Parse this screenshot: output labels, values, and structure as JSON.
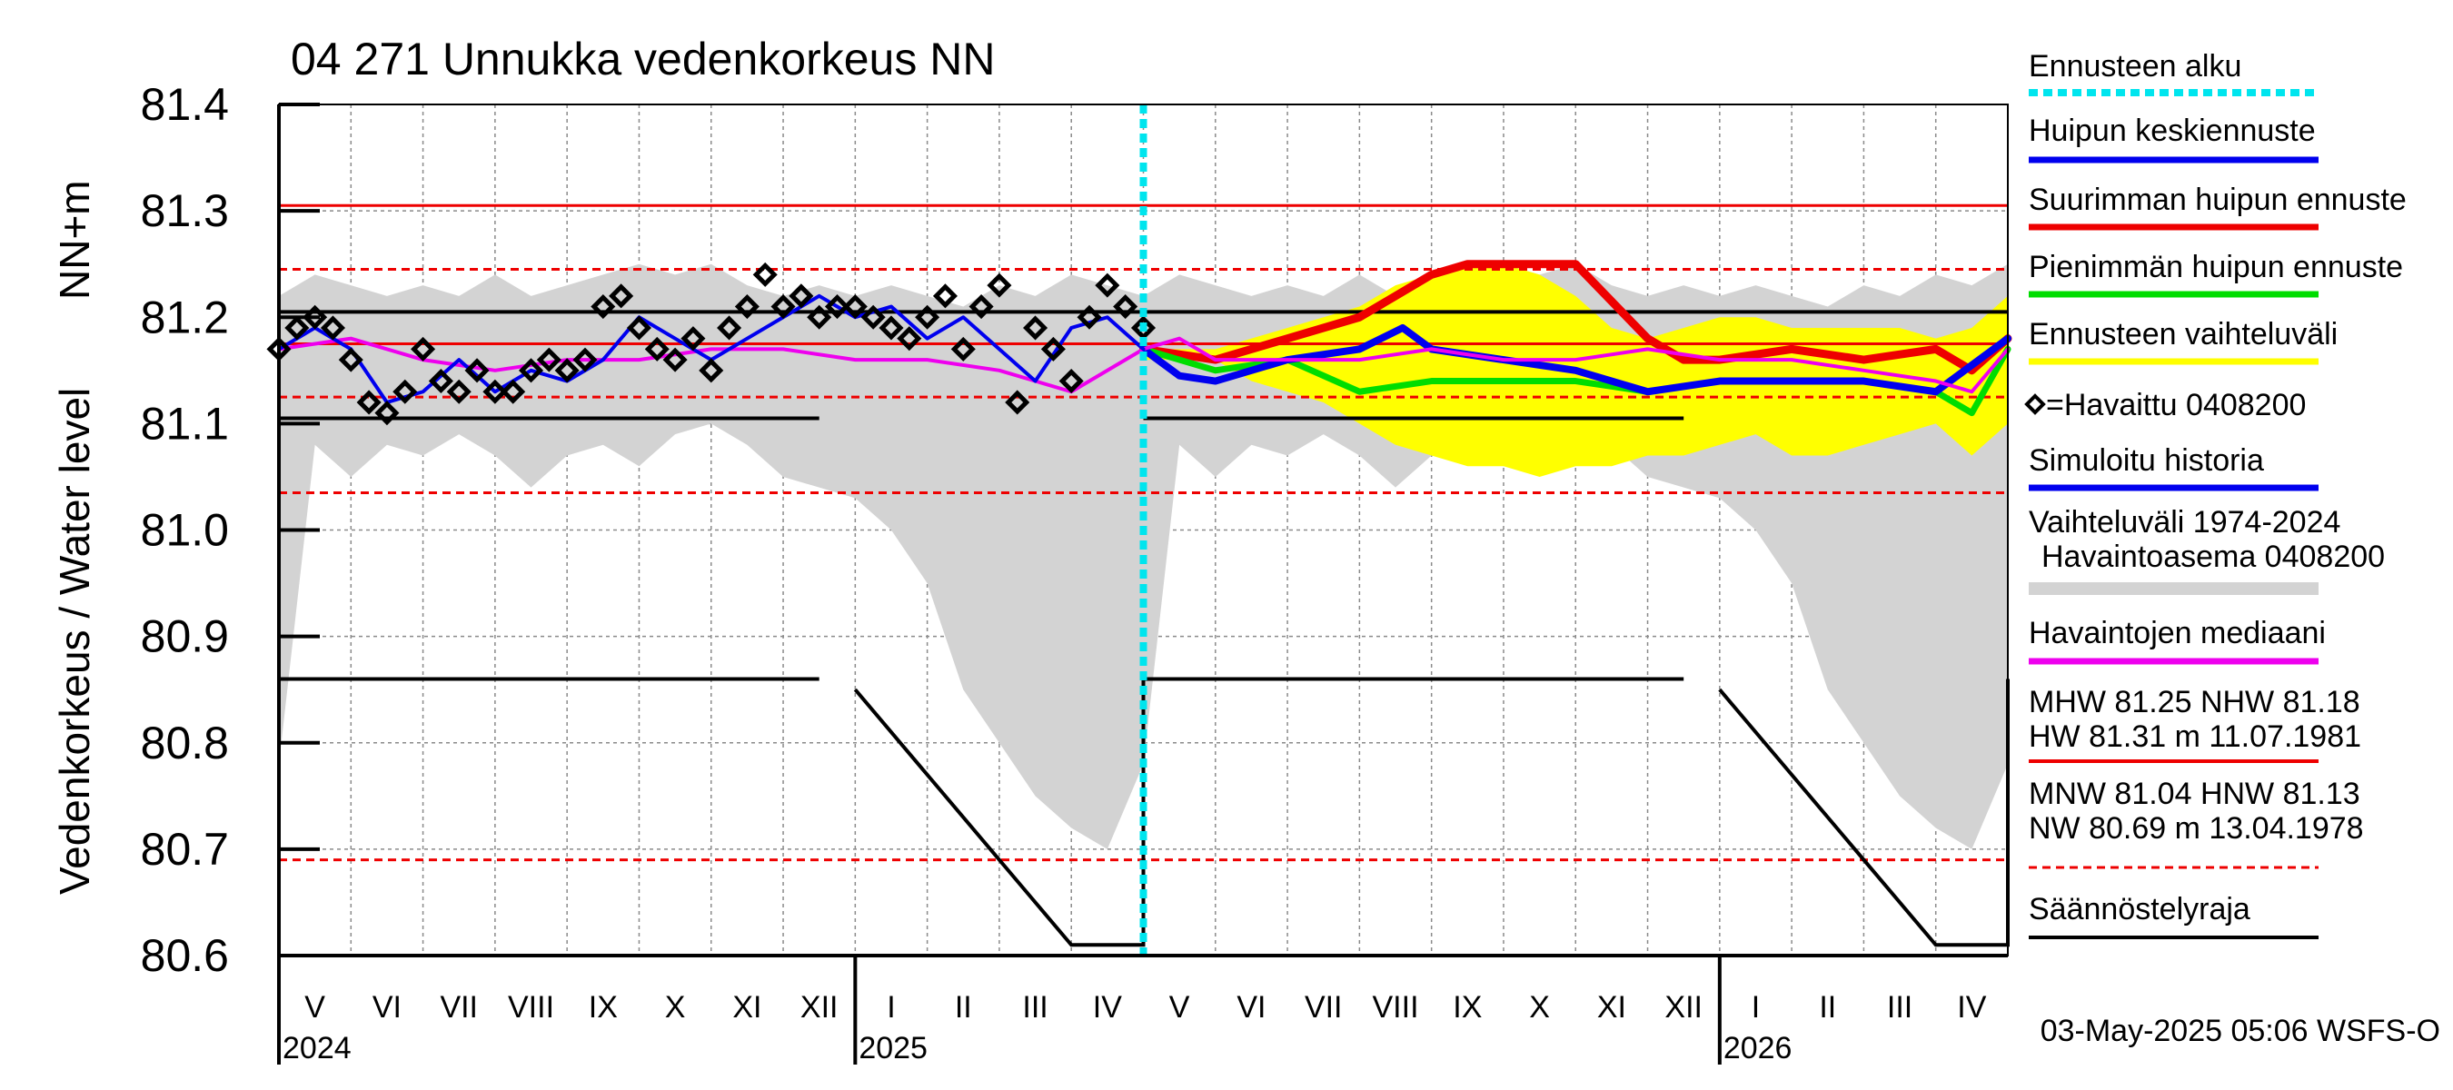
{
  "chart_data": {
    "type": "line",
    "title": "04 271 Unnukka vedenkorkeus NN",
    "ylabel_left": "Vedenkorkeus / Water level",
    "ylabel_unit": "NN+m",
    "ylim": [
      80.6,
      81.4
    ],
    "yticks": [
      "81.4",
      "81.3",
      "81.2",
      "81.1",
      "81.0",
      "80.9",
      "80.8",
      "80.7",
      "80.6"
    ],
    "x_range": [
      "2024-05-01",
      "2026-05-01"
    ],
    "months": [
      "V",
      "VI",
      "VII",
      "VIII",
      "IX",
      "X",
      "XI",
      "XII",
      "I",
      "II",
      "III",
      "IV",
      "V",
      "VI",
      "VII",
      "VIII",
      "IX",
      "X",
      "XI",
      "XII",
      "I",
      "II",
      "III",
      "IV"
    ],
    "years": [
      {
        "label": "2024",
        "month_index": 0
      },
      {
        "label": "2025",
        "month_index": 8
      },
      {
        "label": "2026",
        "month_index": 20
      }
    ],
    "forecast_start_month": 12,
    "reference_lines": [
      {
        "name": "HW",
        "value": 81.305,
        "color": "#ee0000",
        "dash": false
      },
      {
        "name": "MHW",
        "value": 81.245,
        "color": "#ee0000",
        "dash": true
      },
      {
        "name": "NHW",
        "value": 81.175,
        "color": "#ee0000",
        "dash": false
      },
      {
        "name": "HNW",
        "value": 81.125,
        "color": "#ee0000",
        "dash": true
      },
      {
        "name": "MNW",
        "value": 81.035,
        "color": "#ee0000",
        "dash": true
      },
      {
        "name": "NW",
        "value": 80.69,
        "color": "#ee0000",
        "dash": true
      }
    ],
    "regulation_limit": [
      {
        "name": "upper",
        "points": [
          [
            0,
            81.205
          ],
          [
            24,
            81.205
          ]
        ]
      },
      {
        "name": "lower-a",
        "points": [
          [
            0,
            81.105
          ],
          [
            7.5,
            81.105
          ]
        ]
      },
      {
        "name": "lower-b",
        "points": [
          [
            12,
            81.105
          ],
          [
            19.5,
            81.105
          ]
        ]
      },
      {
        "name": "low-a",
        "points": [
          [
            0,
            80.86
          ],
          [
            7.5,
            80.86
          ]
        ]
      },
      {
        "name": "ramp-a",
        "points": [
          [
            8,
            80.85
          ],
          [
            11.0,
            80.61
          ],
          [
            12,
            80.61
          ],
          [
            12,
            80.86
          ],
          [
            19.5,
            80.86
          ]
        ]
      },
      {
        "name": "ramp-b",
        "points": [
          [
            20,
            80.85
          ],
          [
            23.0,
            80.61
          ],
          [
            24,
            80.61
          ],
          [
            24,
            80.86
          ]
        ]
      }
    ],
    "history_band": {
      "name": "Vaihteluväli 1974-2024",
      "x": [
        0,
        0.5,
        1,
        1.5,
        2,
        2.5,
        3,
        3.5,
        4,
        4.5,
        5,
        5.5,
        6,
        6.5,
        7,
        7.5,
        8,
        8.5,
        9,
        9.5,
        10,
        10.5,
        11,
        11.5,
        12,
        12.5,
        13,
        13.5,
        14,
        14.5,
        15,
        15.5,
        16,
        16.5,
        17,
        17.5,
        18,
        18.5,
        19,
        19.5,
        20,
        20.5,
        21,
        21.5,
        22,
        22.5,
        23,
        23.5,
        24
      ],
      "upper": [
        81.22,
        81.24,
        81.23,
        81.22,
        81.23,
        81.22,
        81.24,
        81.22,
        81.23,
        81.24,
        81.25,
        81.24,
        81.25,
        81.23,
        81.22,
        81.23,
        81.22,
        81.23,
        81.22,
        81.21,
        81.23,
        81.22,
        81.24,
        81.23,
        81.22,
        81.24,
        81.23,
        81.22,
        81.23,
        81.22,
        81.24,
        81.22,
        81.23,
        81.24,
        81.25,
        81.24,
        81.25,
        81.23,
        81.22,
        81.23,
        81.22,
        81.23,
        81.22,
        81.21,
        81.23,
        81.22,
        81.24,
        81.23,
        81.25
      ],
      "lower": [
        80.78,
        81.08,
        81.05,
        81.08,
        81.07,
        81.09,
        81.07,
        81.04,
        81.07,
        81.08,
        81.06,
        81.09,
        81.1,
        81.08,
        81.05,
        81.04,
        81.03,
        81.0,
        80.95,
        80.85,
        80.8,
        80.75,
        80.72,
        80.7,
        80.78,
        81.08,
        81.05,
        81.08,
        81.07,
        81.09,
        81.07,
        81.04,
        81.07,
        81.08,
        81.06,
        81.09,
        81.1,
        81.08,
        81.05,
        81.04,
        81.03,
        81.0,
        80.95,
        80.85,
        80.8,
        80.75,
        80.72,
        80.7,
        80.78
      ]
    },
    "forecast_band": {
      "name": "Ennusteen vaihteluväli",
      "x": [
        12,
        12.5,
        13,
        13.5,
        14,
        14.5,
        15,
        15.5,
        16,
        16.5,
        17,
        17.5,
        18,
        18.5,
        19,
        19.5,
        20,
        20.5,
        21,
        21.5,
        22,
        22.5,
        23,
        23.5,
        24
      ],
      "upper": [
        81.17,
        81.17,
        81.17,
        81.18,
        81.19,
        81.2,
        81.21,
        81.23,
        81.24,
        81.25,
        81.25,
        81.24,
        81.22,
        81.19,
        81.18,
        81.19,
        81.2,
        81.2,
        81.19,
        81.19,
        81.19,
        81.19,
        81.18,
        81.19,
        81.22
      ],
      "lower": [
        81.16,
        81.16,
        81.16,
        81.14,
        81.13,
        81.12,
        81.1,
        81.08,
        81.07,
        81.06,
        81.06,
        81.05,
        81.06,
        81.06,
        81.07,
        81.07,
        81.08,
        81.09,
        81.07,
        81.07,
        81.08,
        81.09,
        81.1,
        81.07,
        81.1
      ]
    },
    "series": [
      {
        "name": "Suurimman huipun ennuste",
        "color": "#ee0000",
        "width": 9,
        "points": [
          [
            12,
            81.17
          ],
          [
            13,
            81.16
          ],
          [
            14,
            81.18
          ],
          [
            15,
            81.2
          ],
          [
            15.5,
            81.22
          ],
          [
            16,
            81.24
          ],
          [
            16.5,
            81.25
          ],
          [
            17,
            81.25
          ],
          [
            18,
            81.25
          ],
          [
            19,
            81.18
          ],
          [
            19.5,
            81.16
          ],
          [
            20,
            81.16
          ],
          [
            21,
            81.17
          ],
          [
            22,
            81.16
          ],
          [
            23,
            81.17
          ],
          [
            23.5,
            81.15
          ],
          [
            24,
            81.18
          ]
        ]
      },
      {
        "name": "Pienimmän huipun ennuste",
        "color": "#00dd00",
        "width": 7,
        "points": [
          [
            12,
            81.17
          ],
          [
            13,
            81.15
          ],
          [
            14,
            81.16
          ],
          [
            15,
            81.13
          ],
          [
            16,
            81.14
          ],
          [
            17,
            81.14
          ],
          [
            18,
            81.14
          ],
          [
            19,
            81.13
          ],
          [
            20,
            81.14
          ],
          [
            21,
            81.14
          ],
          [
            22,
            81.14
          ],
          [
            23,
            81.13
          ],
          [
            23.5,
            81.11
          ],
          [
            24,
            81.17
          ]
        ]
      },
      {
        "name": "Huipun keskiennuste",
        "color": "#0000ee",
        "width": 8,
        "points": [
          [
            12,
            81.17
          ],
          [
            12.5,
            81.145
          ],
          [
            13,
            81.14
          ],
          [
            14,
            81.16
          ],
          [
            15,
            81.17
          ],
          [
            15.6,
            81.19
          ],
          [
            16,
            81.17
          ],
          [
            17,
            81.16
          ],
          [
            18,
            81.15
          ],
          [
            19,
            81.13
          ],
          [
            20,
            81.14
          ],
          [
            21,
            81.14
          ],
          [
            22,
            81.14
          ],
          [
            23,
            81.13
          ],
          [
            24,
            81.18
          ]
        ]
      },
      {
        "name": "Havaintojen mediaani",
        "color": "#ee00ee",
        "width": 4,
        "points": [
          [
            0,
            81.17
          ],
          [
            1,
            81.18
          ],
          [
            2,
            81.16
          ],
          [
            3,
            81.15
          ],
          [
            4,
            81.16
          ],
          [
            5,
            81.16
          ],
          [
            6,
            81.17
          ],
          [
            7,
            81.17
          ],
          [
            8,
            81.16
          ],
          [
            9,
            81.16
          ],
          [
            10,
            81.15
          ],
          [
            11,
            81.13
          ],
          [
            12,
            81.17
          ],
          [
            12.5,
            81.18
          ],
          [
            13,
            81.16
          ],
          [
            14,
            81.16
          ],
          [
            15,
            81.16
          ],
          [
            16,
            81.17
          ],
          [
            17,
            81.16
          ],
          [
            18,
            81.16
          ],
          [
            19,
            81.17
          ],
          [
            20,
            81.16
          ],
          [
            21,
            81.16
          ],
          [
            22,
            81.15
          ],
          [
            23,
            81.14
          ],
          [
            23.5,
            81.13
          ],
          [
            24,
            81.17
          ]
        ]
      },
      {
        "name": "Simuloitu historia",
        "color": "#0000ee",
        "width": 4,
        "points": [
          [
            0,
            81.17
          ],
          [
            0.5,
            81.19
          ],
          [
            1,
            81.17
          ],
          [
            1.5,
            81.12
          ],
          [
            2,
            81.13
          ],
          [
            2.5,
            81.16
          ],
          [
            3,
            81.13
          ],
          [
            3.5,
            81.15
          ],
          [
            4,
            81.14
          ],
          [
            4.5,
            81.16
          ],
          [
            5,
            81.2
          ],
          [
            5.5,
            81.18
          ],
          [
            6,
            81.16
          ],
          [
            6.5,
            81.18
          ],
          [
            7,
            81.2
          ],
          [
            7.5,
            81.22
          ],
          [
            8,
            81.2
          ],
          [
            8.5,
            81.21
          ],
          [
            9,
            81.18
          ],
          [
            9.5,
            81.2
          ],
          [
            10,
            81.17
          ],
          [
            10.5,
            81.14
          ],
          [
            11,
            81.19
          ],
          [
            11.5,
            81.2
          ],
          [
            12,
            81.17
          ]
        ]
      }
    ],
    "observations": {
      "name": "=Havaittu 0408200",
      "x": [
        0,
        0.25,
        0.5,
        0.75,
        1,
        1.25,
        1.5,
        1.75,
        2,
        2.25,
        2.5,
        2.75,
        3,
        3.25,
        3.5,
        3.75,
        4,
        4.25,
        4.5,
        4.75,
        5,
        5.25,
        5.5,
        5.75,
        6,
        6.25,
        6.5,
        6.75,
        7,
        7.25,
        7.5,
        7.75,
        8,
        8.25,
        8.5,
        8.75,
        9,
        9.25,
        9.5,
        9.75,
        10,
        10.25,
        10.5,
        10.75,
        11,
        11.25,
        11.5,
        11.75,
        12
      ],
      "y": [
        81.17,
        81.19,
        81.2,
        81.19,
        81.16,
        81.12,
        81.11,
        81.13,
        81.17,
        81.14,
        81.13,
        81.15,
        81.13,
        81.13,
        81.15,
        81.16,
        81.15,
        81.16,
        81.21,
        81.22,
        81.19,
        81.17,
        81.16,
        81.18,
        81.15,
        81.19,
        81.21,
        81.24,
        81.21,
        81.22,
        81.2,
        81.21,
        81.21,
        81.2,
        81.19,
        81.18,
        81.2,
        81.22,
        81.17,
        81.21,
        81.23,
        81.12,
        81.19,
        81.17,
        81.14,
        81.2,
        81.23,
        81.21,
        81.19
      ]
    },
    "legend": [
      {
        "label": "Ennusteen alku",
        "color": "#00e5ee",
        "style": "dotted"
      },
      {
        "label": "Huipun keskiennuste",
        "color": "#0000ee",
        "style": "solid"
      },
      {
        "label": "Suurimman huipun ennuste",
        "color": "#ee0000",
        "style": "solid"
      },
      {
        "label": "Pienimmän huipun ennuste",
        "color": "#00dd00",
        "style": "solid"
      },
      {
        "label": "Ennusteen vaihteluväli",
        "color": "#ffff00",
        "style": "solid"
      },
      {
        "label": "=Havaittu 0408200",
        "color": "#000000",
        "style": "marker"
      },
      {
        "label": "Simuloitu historia",
        "color": "#0000ee",
        "style": "solid"
      },
      {
        "label": "Vaihteluväli 1974-2024",
        "label2": "Havaintoasema 0408200",
        "color": "#d3d3d3",
        "style": "solid"
      },
      {
        "label": "Havaintojen mediaani",
        "color": "#ee00ee",
        "style": "solid"
      },
      {
        "label": "MHW  81.25 NHW  81.18",
        "label2": "HW  81.31 m 11.07.1981",
        "color": "#ee0000",
        "style": "solid"
      },
      {
        "label": "MNW  81.04 HNW  81.13",
        "label2": "NW  80.69 m 13.04.1978",
        "color": "#ee0000",
        "style": "dashed"
      },
      {
        "label": "Säännöstelyraja",
        "color": "#000000",
        "style": "solid"
      }
    ],
    "footer": "03-May-2025 05:06 WSFS-O"
  }
}
